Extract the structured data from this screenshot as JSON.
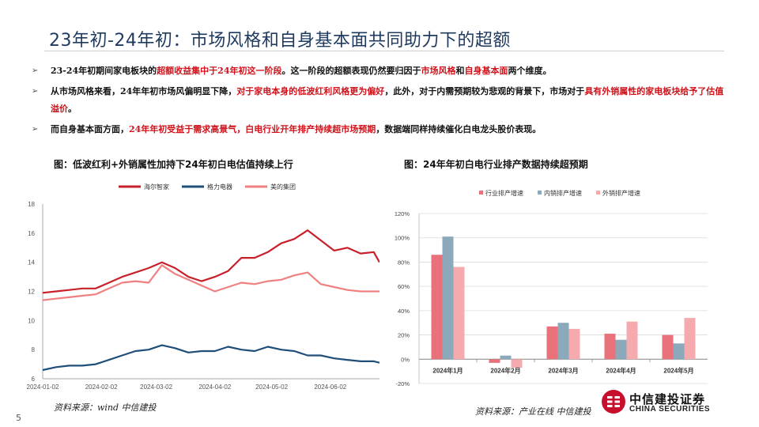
{
  "header": {
    "title": "23年初-24年初：市场风格和自身基本面共同助力下的超额"
  },
  "bullets": [
    {
      "mark": "➢",
      "segments": [
        {
          "text": "23-24年初期间家电板块的",
          "red": false
        },
        {
          "text": "超额收益集中于24年初这一阶段",
          "red": true
        },
        {
          "text": "。这一阶段的超额表现仍然要归因于",
          "red": false
        },
        {
          "text": "市场风格",
          "red": true
        },
        {
          "text": "和",
          "red": false
        },
        {
          "text": "自身基本面",
          "red": true
        },
        {
          "text": "两个维度。",
          "red": false
        }
      ]
    },
    {
      "mark": "➢",
      "segments": [
        {
          "text": "从市场风格来看，24年年初市场风偏明显下降，",
          "red": false
        },
        {
          "text": "对于家电本身的低波红利风格更为偏好",
          "red": true
        },
        {
          "text": "，此外，对于内需预期较为悲观的背景下，市场对于",
          "red": false
        },
        {
          "text": "具有外销属性的家电板块给予了估值溢价",
          "red": true
        },
        {
          "text": "。",
          "red": false
        }
      ]
    },
    {
      "mark": "➢",
      "segments": [
        {
          "text": "而自身基本面方面，",
          "red": false
        },
        {
          "text": "24年年初受益于需求高景气，白电行业开年排产持续超市场预期",
          "red": true
        },
        {
          "text": "，数据端同样持续催化白电龙头股价表现。",
          "red": false
        }
      ]
    }
  ],
  "left_chart_title": "图：低波红利+外销属性加持下24年初白电估值持续上行",
  "right_chart_title": "图：24年年初白电行业排产数据持续超预期",
  "left_source": "资料来源：wind   中信建投",
  "right_source": "资料来源：产业在线   中信建投",
  "page_number": "5",
  "logo": {
    "cn": "中信建投证券",
    "en": "CHINA SECURITIES"
  },
  "chart_data": [
    {
      "type": "line",
      "ylim": [
        6,
        18
      ],
      "yticks": [
        "6",
        "8",
        "10",
        "12",
        "14",
        "16",
        "18"
      ],
      "xticks": [
        "2024-01-02",
        "2024-02-02",
        "2024-03-02",
        "2024-04-02",
        "2024-05-02",
        "2024-06-02"
      ],
      "legend_position": "top",
      "grid": false,
      "x": [
        "2024-01-02",
        "2024-01-09",
        "2024-01-16",
        "2024-01-23",
        "2024-01-30",
        "2024-02-06",
        "2024-02-13",
        "2024-02-20",
        "2024-02-27",
        "2024-03-05",
        "2024-03-12",
        "2024-03-19",
        "2024-03-26",
        "2024-04-02",
        "2024-04-09",
        "2024-04-16",
        "2024-04-23",
        "2024-04-30",
        "2024-05-07",
        "2024-05-14",
        "2024-05-21",
        "2024-05-28",
        "2024-06-04",
        "2024-06-11",
        "2024-06-18",
        "2024-06-25",
        "2024-06-28"
      ],
      "series": [
        {
          "name": "海尔智家",
          "color": "#c8202a",
          "values": [
            11.9,
            12.0,
            12.1,
            12.2,
            12.2,
            12.6,
            13.0,
            13.3,
            13.6,
            14.0,
            13.6,
            13.0,
            12.7,
            13.0,
            13.4,
            14.3,
            14.3,
            14.7,
            15.3,
            15.6,
            16.2,
            15.5,
            14.8,
            15.0,
            14.6,
            14.7,
            14.0
          ]
        },
        {
          "name": "格力电器",
          "color": "#1f4e79",
          "values": [
            6.6,
            6.8,
            6.9,
            6.9,
            7.0,
            7.3,
            7.6,
            7.9,
            8.0,
            8.3,
            8.1,
            7.8,
            7.9,
            7.9,
            8.2,
            8.0,
            7.9,
            8.2,
            8.0,
            7.9,
            7.6,
            7.6,
            7.4,
            7.3,
            7.2,
            7.2,
            7.1
          ]
        },
        {
          "name": "美的集团",
          "color": "#f08080",
          "values": [
            11.4,
            11.5,
            11.6,
            11.7,
            11.8,
            12.2,
            12.6,
            12.7,
            12.6,
            13.8,
            13.2,
            12.8,
            12.4,
            12.0,
            12.3,
            12.6,
            12.5,
            12.7,
            12.8,
            13.1,
            13.3,
            12.5,
            12.3,
            12.1,
            12.0,
            12.0,
            12.0
          ]
        }
      ]
    },
    {
      "type": "bar",
      "categories": [
        "2024年1月",
        "2024年2月",
        "2024年3月",
        "2024年4月",
        "2024年5月"
      ],
      "ylim": [
        -20,
        120
      ],
      "yticks": [
        "-20%",
        "0%",
        "20%",
        "40%",
        "60%",
        "80%",
        "100%",
        "120%"
      ],
      "legend_position": "top",
      "grid": true,
      "series": [
        {
          "name": "行业排产增速",
          "color": "#e9727a",
          "values": [
            86,
            -3,
            27,
            21,
            20
          ]
        },
        {
          "name": "内销排产增速",
          "color": "#8ba9bb",
          "values": [
            101,
            3,
            30,
            16,
            13
          ]
        },
        {
          "name": "外销排产增速",
          "color": "#f5aaae",
          "values": [
            76,
            -7,
            25,
            31,
            34
          ]
        }
      ]
    }
  ]
}
